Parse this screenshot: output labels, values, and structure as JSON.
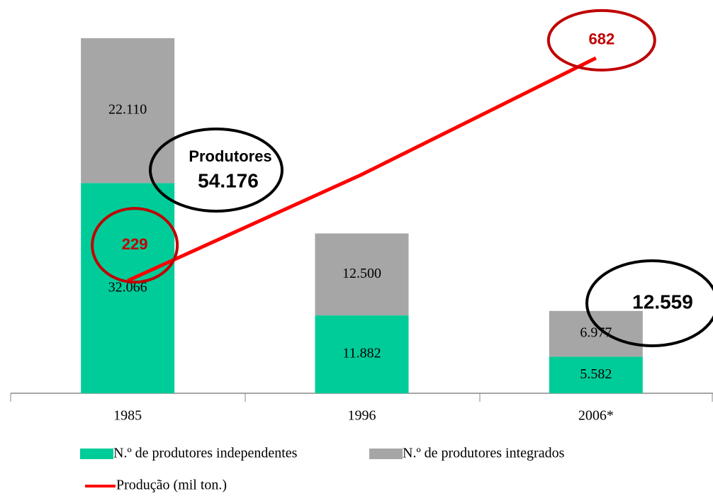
{
  "chart_data": {
    "type": "bar+line",
    "categories": [
      "1985",
      "1996",
      "2006*"
    ],
    "series": [
      {
        "name": "N.º de produtores independentes",
        "color": "#00cc99",
        "values": [
          32066,
          11882,
          5582
        ],
        "value_labels": [
          "32.066",
          "11.882",
          "5.582"
        ]
      },
      {
        "name": "N.º de produtores integrados",
        "color": "#a6a6a6",
        "values": [
          22110,
          12500,
          6977
        ],
        "value_labels": [
          "22.110",
          "12.500",
          "6.977"
        ]
      },
      {
        "name": "Produção (mil ton.)",
        "color": "#ff0000",
        "type": "line",
        "axis": "y2",
        "values": [
          229,
          445,
          682
        ],
        "value_labels": [
          "229",
          null,
          "682"
        ]
      }
    ],
    "ylim": [
      0,
      60000
    ],
    "y2lim": [
      0,
      800
    ],
    "annotations": [
      {
        "text": "Produtores"
      },
      {
        "text": "54.176"
      },
      {
        "text": "12.559"
      }
    ],
    "legend": "bottom"
  }
}
